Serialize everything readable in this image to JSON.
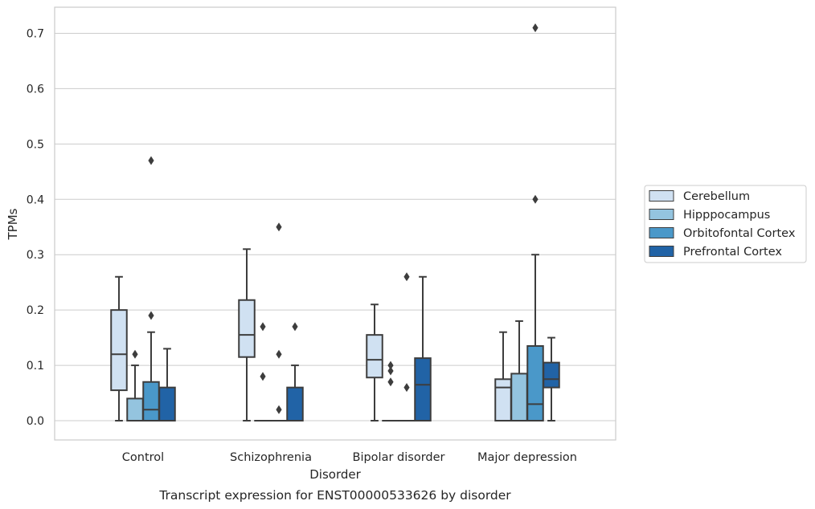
{
  "chart_data": {
    "type": "box",
    "xlabel": "Disorder",
    "ylabel": "TPMs",
    "caption": "Transcript expression for ENST00000533626 by disorder",
    "ylim": [
      -0.035,
      0.745
    ],
    "yticks": [
      0.0,
      0.1,
      0.2,
      0.3,
      0.4,
      0.5,
      0.6,
      0.7
    ],
    "ytick_labels": [
      "0.0",
      "0.1",
      "0.2",
      "0.3",
      "0.4",
      "0.5",
      "0.6",
      "0.7"
    ],
    "grid": true,
    "legend_position": "right",
    "categories": [
      "Control",
      "Schizophrenia",
      "Bipolar disorder",
      "Major depression"
    ],
    "series": [
      {
        "name": "Cerebellum",
        "color": "#d0e1f2",
        "boxes": [
          {
            "whislo": 0.0,
            "q1": 0.055,
            "med": 0.12,
            "q3": 0.2,
            "whishi": 0.26,
            "fliers": []
          },
          {
            "whislo": 0.0,
            "q1": 0.115,
            "med": 0.155,
            "q3": 0.218,
            "whishi": 0.31,
            "fliers": []
          },
          {
            "whislo": 0.0,
            "q1": 0.078,
            "med": 0.11,
            "q3": 0.155,
            "whishi": 0.21,
            "fliers": []
          },
          {
            "whislo": 0.0,
            "q1": 0.0,
            "med": 0.06,
            "q3": 0.075,
            "whishi": 0.16,
            "fliers": []
          }
        ]
      },
      {
        "name": "Hipppocampus",
        "color": "#94c4df",
        "boxes": [
          {
            "whislo": 0.0,
            "q1": 0.0,
            "med": 0.0,
            "q3": 0.04,
            "whishi": 0.1,
            "fliers": [
              0.12
            ]
          },
          {
            "whislo": 0.0,
            "q1": 0.0,
            "med": 0.0,
            "q3": 0.0,
            "whishi": 0.0,
            "fliers": [
              0.08,
              0.17
            ]
          },
          {
            "whislo": 0.0,
            "q1": 0.0,
            "med": 0.0,
            "q3": 0.0,
            "whishi": 0.0,
            "fliers": [
              0.07,
              0.09,
              0.1
            ]
          },
          {
            "whislo": 0.0,
            "q1": 0.0,
            "med": 0.0,
            "q3": 0.085,
            "whishi": 0.18,
            "fliers": []
          }
        ]
      },
      {
        "name": "Orbitofontal Cortex",
        "color": "#4a98c9",
        "boxes": [
          {
            "whislo": 0.0,
            "q1": 0.0,
            "med": 0.02,
            "q3": 0.07,
            "whishi": 0.16,
            "fliers": [
              0.19,
              0.47
            ]
          },
          {
            "whislo": 0.0,
            "q1": 0.0,
            "med": 0.0,
            "q3": 0.0,
            "whishi": 0.0,
            "fliers": [
              0.02,
              0.12,
              0.35
            ]
          },
          {
            "whislo": 0.0,
            "q1": 0.0,
            "med": 0.0,
            "q3": 0.0,
            "whishi": 0.0,
            "fliers": [
              0.06,
              0.26
            ]
          },
          {
            "whislo": 0.0,
            "q1": 0.0,
            "med": 0.03,
            "q3": 0.135,
            "whishi": 0.3,
            "fliers": [
              0.4,
              0.71
            ]
          }
        ]
      },
      {
        "name": "Prefrontal Cortex",
        "color": "#2163a6",
        "boxes": [
          {
            "whislo": 0.0,
            "q1": 0.0,
            "med": 0.0,
            "q3": 0.06,
            "whishi": 0.13,
            "fliers": []
          },
          {
            "whislo": 0.0,
            "q1": 0.0,
            "med": 0.0,
            "q3": 0.06,
            "whishi": 0.1,
            "fliers": [
              0.17
            ]
          },
          {
            "whislo": 0.0,
            "q1": 0.0,
            "med": 0.065,
            "q3": 0.113,
            "whishi": 0.26,
            "fliers": []
          },
          {
            "whislo": 0.0,
            "q1": 0.06,
            "med": 0.075,
            "q3": 0.105,
            "whishi": 0.15,
            "fliers": []
          }
        ]
      }
    ]
  }
}
